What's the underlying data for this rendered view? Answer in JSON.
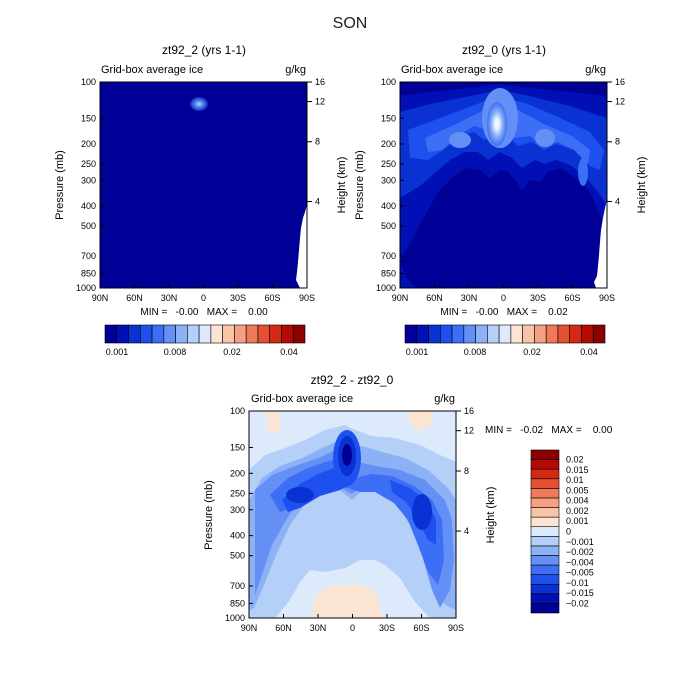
{
  "figure_title": "SON",
  "chart_data": [
    {
      "type": "heatmap",
      "title": "zt92_2 (yrs 1-1)",
      "subtitle_left": "Grid-box average ice",
      "subtitle_right": "g/kg",
      "xlabel": "",
      "ylabel": "Pressure (mb)",
      "ylabel_right": "Height (km)",
      "x_ticks": [
        "90N",
        "60N",
        "30N",
        "0",
        "30S",
        "60S",
        "90S"
      ],
      "y_ticks": [
        "100",
        "150",
        "200",
        "250",
        "300",
        "400",
        "500",
        "700",
        "850",
        "1000"
      ],
      "height_ticks": [
        "16",
        "12",
        "8",
        "4"
      ],
      "xlim": [
        90,
        -90
      ],
      "ylim": [
        1000,
        100
      ],
      "stats": "MIN =   -0.00   MAX =    0.00",
      "colorbar": {
        "orientation": "horizontal",
        "colors": [
          "#000096",
          "#0010b4",
          "#0a32d2",
          "#1e50ee",
          "#3c6ef6",
          "#6490f5",
          "#8cb2f5",
          "#b4d0f8",
          "#dceafc",
          "#fce4d2",
          "#f8c4a8",
          "#f4a082",
          "#ee7a5a",
          "#e45032",
          "#d22814",
          "#b40a04",
          "#8c0000"
        ],
        "labels": [
          "0.001",
          "0.008",
          "0.02",
          "0.04"
        ]
      }
    },
    {
      "type": "heatmap",
      "title": "zt92_0 (yrs 1-1)",
      "subtitle_left": "Grid-box average ice",
      "subtitle_right": "g/kg",
      "xlabel": "",
      "ylabel": "Pressure (mb)",
      "ylabel_right": "Height (km)",
      "x_ticks": [
        "90N",
        "60N",
        "30N",
        "0",
        "30S",
        "60S",
        "90S"
      ],
      "y_ticks": [
        "100",
        "150",
        "200",
        "250",
        "300",
        "400",
        "500",
        "700",
        "850",
        "1000"
      ],
      "height_ticks": [
        "16",
        "12",
        "8",
        "4"
      ],
      "xlim": [
        90,
        -90
      ],
      "ylim": [
        1000,
        100
      ],
      "stats": "MIN =   -0.00   MAX =    0.02",
      "colorbar": {
        "orientation": "horizontal",
        "colors": [
          "#000096",
          "#0010b4",
          "#0a32d2",
          "#1e50ee",
          "#3c6ef6",
          "#6490f5",
          "#8cb2f5",
          "#b4d0f8",
          "#dceafc",
          "#fce4d2",
          "#f8c4a8",
          "#f4a082",
          "#ee7a5a",
          "#e45032",
          "#d22814",
          "#b40a04",
          "#8c0000"
        ],
        "labels": [
          "0.001",
          "0.008",
          "0.02",
          "0.04"
        ]
      }
    },
    {
      "type": "heatmap",
      "title": "zt92_2 - zt92_0",
      "subtitle_left": "Grid-box average ice",
      "subtitle_right": "g/kg",
      "xlabel": "",
      "ylabel": "Pressure (mb)",
      "ylabel_right": "Height (km)",
      "x_ticks": [
        "90N",
        "60N",
        "30N",
        "0",
        "30S",
        "60S",
        "90S"
      ],
      "y_ticks": [
        "100",
        "150",
        "200",
        "250",
        "300",
        "400",
        "500",
        "700",
        "850",
        "1000"
      ],
      "height_ticks": [
        "16",
        "12",
        "8",
        "4"
      ],
      "xlim": [
        90,
        -90
      ],
      "ylim": [
        1000,
        100
      ],
      "stats": "MIN =   -0.02   MAX =    0.00",
      "colorbar": {
        "orientation": "vertical",
        "colors": [
          "#000096",
          "#0010b4",
          "#0a32d2",
          "#1e50ee",
          "#3c6ef6",
          "#6490f5",
          "#8cb2f5",
          "#b4d0f8",
          "#dceafc",
          "#fce4d2",
          "#f8c4a8",
          "#f4a082",
          "#ee7a5a",
          "#e45032",
          "#d22814",
          "#b40a04",
          "#8c0000"
        ],
        "labels": [
          "-0.02",
          "-0.015",
          "-0.01",
          "-0.005",
          "-0.004",
          "-0.002",
          "-0.001",
          "0",
          "0.001",
          "0.002",
          "0.004",
          "0.005",
          "0.01",
          "0.015",
          "0.02"
        ]
      }
    }
  ]
}
